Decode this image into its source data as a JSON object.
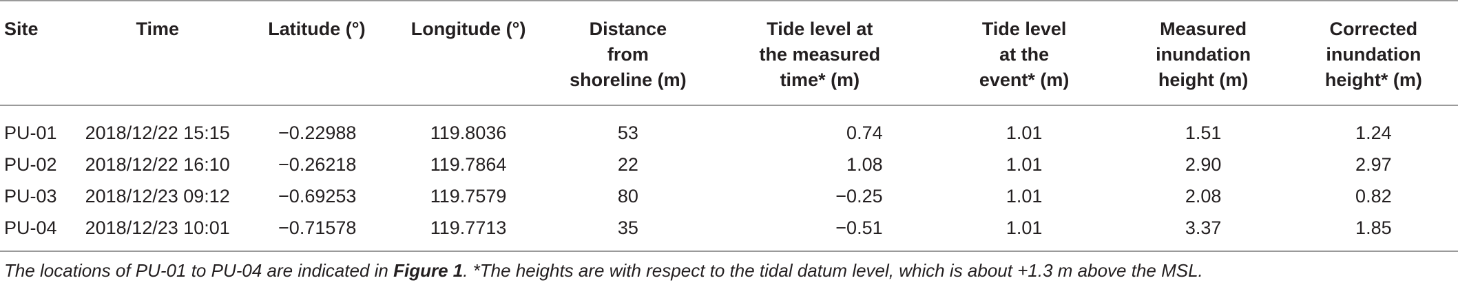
{
  "table": {
    "headers": [
      "Site",
      "Time",
      "Latitude (°)",
      "Longitude (°)",
      "Distance from shoreline (m)",
      "Tide level at the measured time* (m)",
      "Tide level at the event* (m)",
      "Measured inundation height (m)",
      "Corrected inundation height* (m)"
    ],
    "header_lines": [
      [
        "Site"
      ],
      [
        "Time"
      ],
      [
        "Latitude (°)"
      ],
      [
        "Longitude (°)"
      ],
      [
        "Distance",
        "from",
        "shoreline (m)"
      ],
      [
        "Tide level at",
        "the measured",
        "time* (m)"
      ],
      [
        "Tide level",
        "at the",
        "event* (m)"
      ],
      [
        "Measured",
        "inundation",
        "height (m)"
      ],
      [
        "Corrected",
        "inundation",
        "height* (m)"
      ]
    ],
    "rows": [
      [
        "PU-01",
        "2018/12/22 15:15",
        "−0.22988",
        "119.8036",
        "53",
        "0.74",
        "1.01",
        "1.51",
        "1.24"
      ],
      [
        "PU-02",
        "2018/12/22 16:10",
        "−0.26218",
        "119.7864",
        "22",
        "1.08",
        "1.01",
        "2.90",
        "2.97"
      ],
      [
        "PU-03",
        "2018/12/23 09:12",
        "−0.69253",
        "119.7579",
        "80",
        "−0.25",
        "1.01",
        "2.08",
        "0.82"
      ],
      [
        "PU-04",
        "2018/12/23 10:01",
        "−0.71578",
        "119.7713",
        "35",
        "−0.51",
        "1.01",
        "3.37",
        "1.85"
      ]
    ]
  },
  "footnote": {
    "part1": "The locations of PU-01 to PU-04 are indicated in ",
    "figure_ref": "Figure 1",
    "part2": ". *The heights are with respect to the tidal datum level, which is about +1.3 m above the MSL."
  },
  "colors": {
    "text": "#231f20",
    "rule": "#9a9a9a"
  }
}
